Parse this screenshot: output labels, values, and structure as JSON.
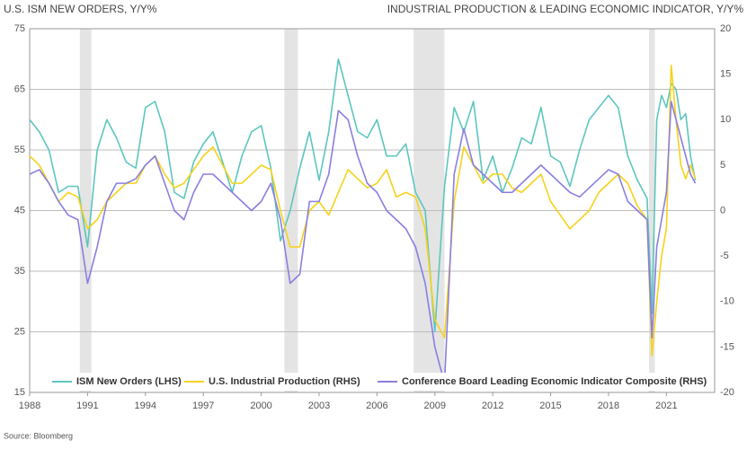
{
  "chart_data": {
    "type": "line",
    "title": "U.S. ISM NEW ORDERS, Y/Y%",
    "title_right": "INDUSTRIAL PRODUCTION & LEADING ECONOMIC INDICATOR, Y/Y%",
    "source": "Source: Bloomberg",
    "x": [
      1988,
      1988.5,
      1989,
      1989.5,
      1990,
      1990.5,
      1991,
      1991.5,
      1992,
      1992.5,
      1993,
      1993.5,
      1994,
      1994.5,
      1995,
      1995.5,
      1996,
      1996.5,
      1997,
      1997.5,
      1998,
      1998.5,
      1999,
      1999.5,
      2000,
      2000.5,
      2001,
      2001.5,
      2002,
      2002.5,
      2003,
      2003.5,
      2004,
      2004.5,
      2005,
      2005.5,
      2006,
      2006.5,
      2007,
      2007.5,
      2008,
      2008.5,
      2009,
      2009.5,
      2010,
      2010.5,
      2011,
      2011.5,
      2012,
      2012.5,
      2013,
      2013.5,
      2014,
      2014.5,
      2015,
      2015.5,
      2016,
      2016.5,
      2017,
      2017.5,
      2018,
      2018.5,
      2019,
      2019.5,
      2020,
      2020.25,
      2020.5,
      2020.75,
      2021,
      2021.25,
      2021.5,
      2021.75,
      2022,
      2022.25,
      2022.5
    ],
    "series": [
      {
        "name": "ISM New Orders (LHS)",
        "color": "#5cc6be",
        "axis": "y",
        "values": [
          60,
          58,
          55,
          48,
          49,
          49,
          39,
          55,
          60,
          57,
          53,
          52,
          62,
          63,
          58,
          48,
          47,
          53,
          56,
          58,
          53,
          48,
          54,
          58,
          59,
          52,
          40,
          45,
          52,
          58,
          50,
          58,
          70,
          64,
          58,
          57,
          60,
          54,
          54,
          56,
          48,
          45,
          25,
          49,
          62,
          58,
          63,
          50,
          54,
          48,
          52,
          57,
          56,
          62,
          54,
          53,
          49,
          55,
          60,
          62,
          64,
          62,
          54,
          50,
          47,
          28,
          60,
          64,
          62,
          66,
          65,
          60,
          61,
          54,
          50
        ]
      },
      {
        "name": "U.S. Industrial Production (RHS)",
        "color": "#f6d21a",
        "axis": "y2",
        "values": [
          6,
          5,
          3,
          1,
          2,
          1.5,
          -2,
          -1,
          1,
          2,
          3,
          3,
          5,
          6,
          4,
          2.5,
          3,
          4.5,
          6,
          7,
          5,
          3,
          3,
          4,
          5,
          4.5,
          0,
          -4,
          -4,
          0,
          1,
          -0.5,
          2,
          4.5,
          3.5,
          2.5,
          3,
          4.5,
          1.5,
          2,
          1.5,
          -2,
          -12,
          -14,
          1,
          7,
          5,
          3,
          4,
          4,
          2.5,
          2,
          3,
          4,
          1,
          -0.5,
          -2,
          -1,
          0,
          2,
          3,
          4,
          3,
          0.5,
          -1,
          -16,
          -10,
          -5,
          -2,
          16,
          10,
          5,
          3.5,
          5,
          3.5
        ]
      },
      {
        "name": "Conference Board Leading Economic Indicator Composite (RHS)",
        "color": "#8a7fe0",
        "axis": "y2",
        "values": [
          4,
          4.5,
          3,
          1,
          -0.5,
          -1,
          -8,
          -4,
          1,
          3,
          3,
          3.5,
          5,
          6,
          3,
          0,
          -1,
          2,
          4,
          4,
          3,
          2,
          1,
          0,
          1,
          3,
          -1,
          -8,
          -7,
          1,
          1,
          4,
          11,
          10,
          6,
          3,
          2,
          0,
          -1,
          -2,
          -4,
          -8,
          -15,
          -19,
          4,
          9,
          5,
          4,
          3,
          2,
          2,
          3,
          4,
          5,
          4,
          3,
          2,
          1.5,
          2.5,
          3.5,
          4.5,
          4,
          1,
          0,
          -1,
          -14,
          -4,
          -1,
          2,
          12,
          10,
          8,
          6,
          4,
          3
        ]
      }
    ],
    "recessions": [
      [
        1990.6,
        1991.2
      ],
      [
        2001.2,
        2001.9
      ],
      [
        2007.9,
        2009.5
      ],
      [
        2020.1,
        2020.4
      ]
    ],
    "xlim": [
      1988,
      2023.5
    ],
    "xticks": [
      1988,
      1991,
      1994,
      1997,
      2000,
      2003,
      2006,
      2009,
      2012,
      2015,
      2018,
      2021
    ],
    "ylim": [
      15,
      75
    ],
    "yticks": [
      15,
      25,
      35,
      45,
      55,
      65,
      75
    ],
    "y2lim": [
      -20,
      20
    ],
    "y2ticks": [
      -20,
      -15,
      -10,
      -5,
      0,
      5,
      10,
      15,
      20
    ],
    "grid": true
  }
}
